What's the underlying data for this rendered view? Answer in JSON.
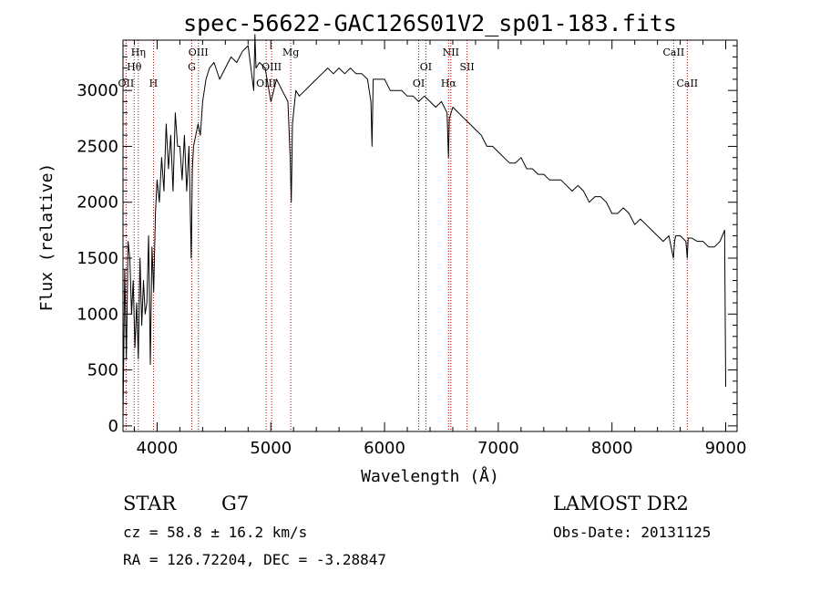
{
  "chart_data": {
    "type": "line",
    "title": "spec-56622-GAC126S01V2_sp01-183.fits",
    "xlabel": "Wavelength (Å)",
    "ylabel": "Flux (relative)",
    "xlim": [
      3700,
      9100
    ],
    "ylim": [
      -50,
      3450
    ],
    "x_ticks": [
      4000,
      5000,
      6000,
      7000,
      8000,
      9000
    ],
    "y_ticks": [
      0,
      500,
      1000,
      1500,
      2000,
      2500,
      3000
    ],
    "x_tick_labels": [
      "4000",
      "5000",
      "6000",
      "7000",
      "8000",
      "9000"
    ],
    "y_tick_labels": [
      "0",
      "500",
      "1000",
      "1500",
      "2000",
      "2500",
      "3000"
    ],
    "series": [
      {
        "name": "flux",
        "x": [
          3700,
          3715,
          3730,
          3745,
          3760,
          3775,
          3790,
          3805,
          3820,
          3835,
          3850,
          3865,
          3880,
          3895,
          3910,
          3925,
          3940,
          3955,
          3970,
          3985,
          4000,
          4020,
          4040,
          4060,
          4080,
          4100,
          4120,
          4140,
          4160,
          4180,
          4200,
          4220,
          4240,
          4260,
          4280,
          4300,
          4310,
          4320,
          4340,
          4360,
          4380,
          4400,
          4430,
          4460,
          4500,
          4550,
          4600,
          4650,
          4700,
          4750,
          4800,
          4850,
          4860,
          4870,
          4900,
          4950,
          5000,
          5050,
          5100,
          5150,
          5170,
          5180,
          5190,
          5200,
          5220,
          5250,
          5300,
          5350,
          5400,
          5450,
          5500,
          5550,
          5600,
          5650,
          5700,
          5750,
          5800,
          5850,
          5880,
          5890,
          5900,
          5950,
          6000,
          6050,
          6100,
          6150,
          6200,
          6250,
          6300,
          6350,
          6400,
          6450,
          6500,
          6550,
          6562,
          6570,
          6600,
          6650,
          6700,
          6750,
          6800,
          6850,
          6900,
          6950,
          7000,
          7050,
          7100,
          7150,
          7200,
          7250,
          7300,
          7350,
          7400,
          7450,
          7500,
          7550,
          7600,
          7650,
          7700,
          7750,
          7800,
          7850,
          7900,
          7950,
          8000,
          8050,
          8100,
          8150,
          8200,
          8250,
          8300,
          8350,
          8400,
          8450,
          8500,
          8540,
          8550,
          8560,
          8600,
          8650,
          8662,
          8670,
          8700,
          8750,
          8800,
          8850,
          8900,
          8950,
          8990,
          9000
        ],
        "y": [
          50,
          1400,
          600,
          1650,
          1500,
          1000,
          1300,
          700,
          1100,
          600,
          1500,
          900,
          1300,
          1000,
          1100,
          1700,
          550,
          1600,
          1200,
          1900,
          2200,
          2000,
          2400,
          2100,
          2700,
          2300,
          2600,
          2100,
          2800,
          2500,
          2500,
          2200,
          2600,
          2100,
          2500,
          1500,
          2300,
          2500,
          2600,
          2700,
          2600,
          2900,
          3100,
          3200,
          3250,
          3100,
          3200,
          3300,
          3250,
          3350,
          3400,
          3000,
          3500,
          3200,
          3250,
          3200,
          2900,
          3100,
          3000,
          2900,
          2400,
          2000,
          2700,
          2800,
          3000,
          2950,
          3000,
          3050,
          3100,
          3150,
          3200,
          3150,
          3200,
          3150,
          3200,
          3150,
          3150,
          3100,
          2900,
          2500,
          3100,
          3100,
          3100,
          3000,
          3000,
          3000,
          2950,
          2950,
          2900,
          2950,
          2900,
          2850,
          2900,
          2800,
          2400,
          2750,
          2850,
          2800,
          2750,
          2700,
          2650,
          2600,
          2500,
          2500,
          2450,
          2400,
          2350,
          2350,
          2400,
          2300,
          2300,
          2250,
          2250,
          2200,
          2200,
          2200,
          2150,
          2100,
          2150,
          2100,
          2000,
          2050,
          2050,
          2000,
          1900,
          1900,
          1950,
          1900,
          1800,
          1850,
          1800,
          1750,
          1700,
          1650,
          1700,
          1500,
          1650,
          1700,
          1700,
          1650,
          1500,
          1680,
          1680,
          1650,
          1650,
          1600,
          1600,
          1650,
          1750,
          350
        ]
      }
    ],
    "line_markers": [
      {
        "name": "OII",
        "x": 3727,
        "row": 3
      },
      {
        "name": "Hη",
        "x": 3835,
        "row": 1
      },
      {
        "name": "Hθ",
        "x": 3798,
        "row": 2
      },
      {
        "name": "H",
        "x": 3968,
        "row": 3
      },
      {
        "name": "OIII",
        "x": 4363,
        "row": 1
      },
      {
        "name": "G",
        "x": 4305,
        "row": 2
      },
      {
        "name": "Mg",
        "x": 5175,
        "row": 1
      },
      {
        "name": "OIII",
        "x": 5007,
        "row": 2
      },
      {
        "name": "OIII",
        "x": 4959,
        "row": 3
      },
      {
        "name": "NII",
        "x": 6583,
        "row": 1
      },
      {
        "name": "OI",
        "x": 6363,
        "row": 2
      },
      {
        "name": "OI",
        "x": 6300,
        "row": 3
      },
      {
        "name": "SII",
        "x": 6725,
        "row": 2
      },
      {
        "name": "Hα",
        "x": 6563,
        "row": 3
      },
      {
        "name": "CaII",
        "x": 8542,
        "row": 1
      },
      {
        "name": "CaII",
        "x": 8662,
        "row": 3
      }
    ]
  },
  "info": {
    "object_class": "STAR",
    "subclass": "G7",
    "survey": "LAMOST DR2",
    "redshift": "cz = 58.8 ± 16.2 km/s",
    "obs_date": "Obs-Date: 20131125",
    "coords": "RA = 126.72204, DEC =  -3.28847"
  },
  "colors": {
    "line": "#000000",
    "marker": "#b00000",
    "background": "#ffffff"
  }
}
